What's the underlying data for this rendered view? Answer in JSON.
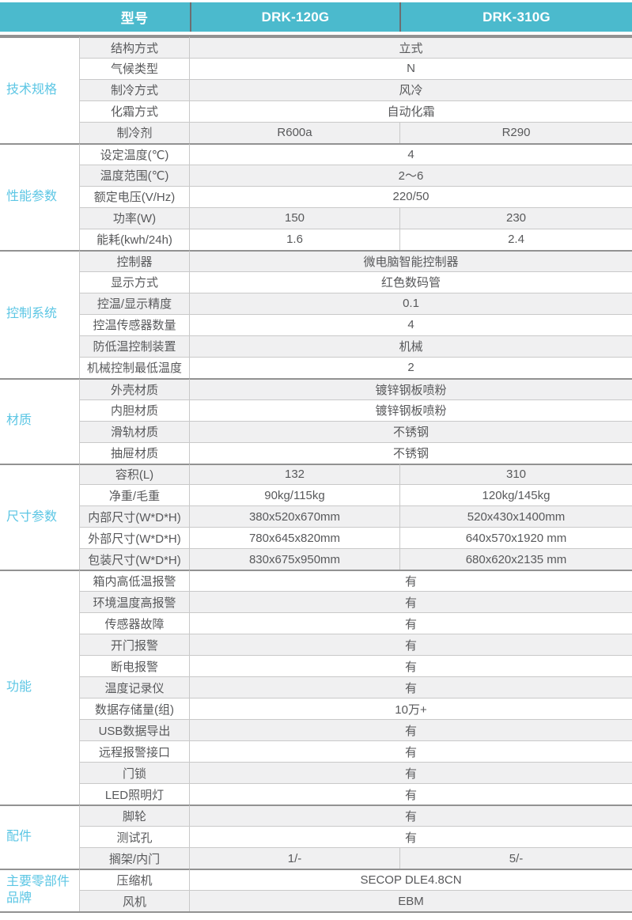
{
  "colors": {
    "header_bg": "#4bbacd",
    "header_text": "#ffffff",
    "header_divider": "#6d6e71",
    "category_text": "#5cc6e4",
    "body_text": "#58595b",
    "stripe_bg": "#f0f0f1",
    "row_border": "#c9c9c9",
    "section_border": "#929292"
  },
  "table": {
    "header": {
      "model_label": "型号",
      "columns": [
        "DRK-120G",
        "DRK-310G"
      ]
    },
    "sections": [
      {
        "category": "技术规格",
        "rows": [
          {
            "label": "结构方式",
            "values": [
              "立式"
            ]
          },
          {
            "label": "气候类型",
            "values": [
              "N"
            ]
          },
          {
            "label": "制冷方式",
            "values": [
              "风冷"
            ]
          },
          {
            "label": "化霜方式",
            "values": [
              "自动化霜"
            ]
          },
          {
            "label": "制冷剂",
            "values": [
              "R600a",
              "R290"
            ]
          }
        ]
      },
      {
        "category": "性能参数",
        "rows": [
          {
            "label": "设定温度(℃)",
            "values": [
              "4"
            ]
          },
          {
            "label": "温度范围(℃)",
            "values": [
              "2～6"
            ]
          },
          {
            "label": "额定电压(V/Hz)",
            "values": [
              "220/50"
            ]
          },
          {
            "label": "功率(W)",
            "values": [
              "150",
              "230"
            ]
          },
          {
            "label": "能耗(kwh/24h)",
            "values": [
              "1.6",
              "2.4"
            ]
          }
        ]
      },
      {
        "category": "控制系统",
        "rows": [
          {
            "label": "控制器",
            "values": [
              "微电脑智能控制器"
            ]
          },
          {
            "label": "显示方式",
            "values": [
              "红色数码管"
            ]
          },
          {
            "label": "控温/显示精度",
            "values": [
              "0.1"
            ]
          },
          {
            "label": "控温传感器数量",
            "values": [
              "4"
            ]
          },
          {
            "label": "防低温控制装置",
            "values": [
              "机械"
            ]
          },
          {
            "label": "机械控制最低温度",
            "values": [
              "2"
            ]
          }
        ]
      },
      {
        "category": "材质",
        "rows": [
          {
            "label": "外壳材质",
            "values": [
              "镀锌钢板喷粉"
            ]
          },
          {
            "label": "内胆材质",
            "values": [
              "镀锌钢板喷粉"
            ]
          },
          {
            "label": "滑轨材质",
            "values": [
              "不锈钢"
            ]
          },
          {
            "label": "抽屉材质",
            "values": [
              "不锈钢"
            ]
          }
        ]
      },
      {
        "category": "尺寸参数",
        "rows": [
          {
            "label": "容积(L)",
            "values": [
              "132",
              "310"
            ]
          },
          {
            "label": "净重/毛重",
            "values": [
              "90kg/115kg",
              "120kg/145kg"
            ]
          },
          {
            "label": "内部尺寸(W*D*H)",
            "values": [
              "380x520x670mm",
              "520x430x1400mm"
            ]
          },
          {
            "label": "外部尺寸(W*D*H)",
            "values": [
              "780x645x820mm",
              "640x570x1920 mm"
            ]
          },
          {
            "label": "包装尺寸(W*D*H)",
            "values": [
              "830x675x950mm",
              "680x620x2135 mm"
            ]
          }
        ]
      },
      {
        "category": "功能",
        "rows": [
          {
            "label": "箱内高低温报警",
            "values": [
              "有"
            ]
          },
          {
            "label": "环境温度高报警",
            "values": [
              "有"
            ]
          },
          {
            "label": "传感器故障",
            "values": [
              "有"
            ]
          },
          {
            "label": "开门报警",
            "values": [
              "有"
            ]
          },
          {
            "label": "断电报警",
            "values": [
              "有"
            ]
          },
          {
            "label": "温度记录仪",
            "values": [
              "有"
            ]
          },
          {
            "label": "数据存储量(组)",
            "values": [
              "10万+"
            ]
          },
          {
            "label": "USB数据导出",
            "values": [
              "有"
            ]
          },
          {
            "label": "远程报警接口",
            "values": [
              "有"
            ]
          },
          {
            "label": "门锁",
            "values": [
              "有"
            ]
          },
          {
            "label": "LED照明灯",
            "values": [
              "有"
            ]
          }
        ]
      },
      {
        "category": "配件",
        "rows": [
          {
            "label": "脚轮",
            "values": [
              "有"
            ]
          },
          {
            "label": "测试孔",
            "values": [
              "有"
            ]
          },
          {
            "label": "搁架/内门",
            "values": [
              "1/-",
              "5/-"
            ]
          }
        ]
      },
      {
        "category": "主要零部件品牌",
        "rows": [
          {
            "label": "压缩机",
            "values": [
              "SECOP DLE4.8CN"
            ]
          },
          {
            "label": "风机",
            "values": [
              "EBM"
            ]
          }
        ]
      }
    ]
  }
}
